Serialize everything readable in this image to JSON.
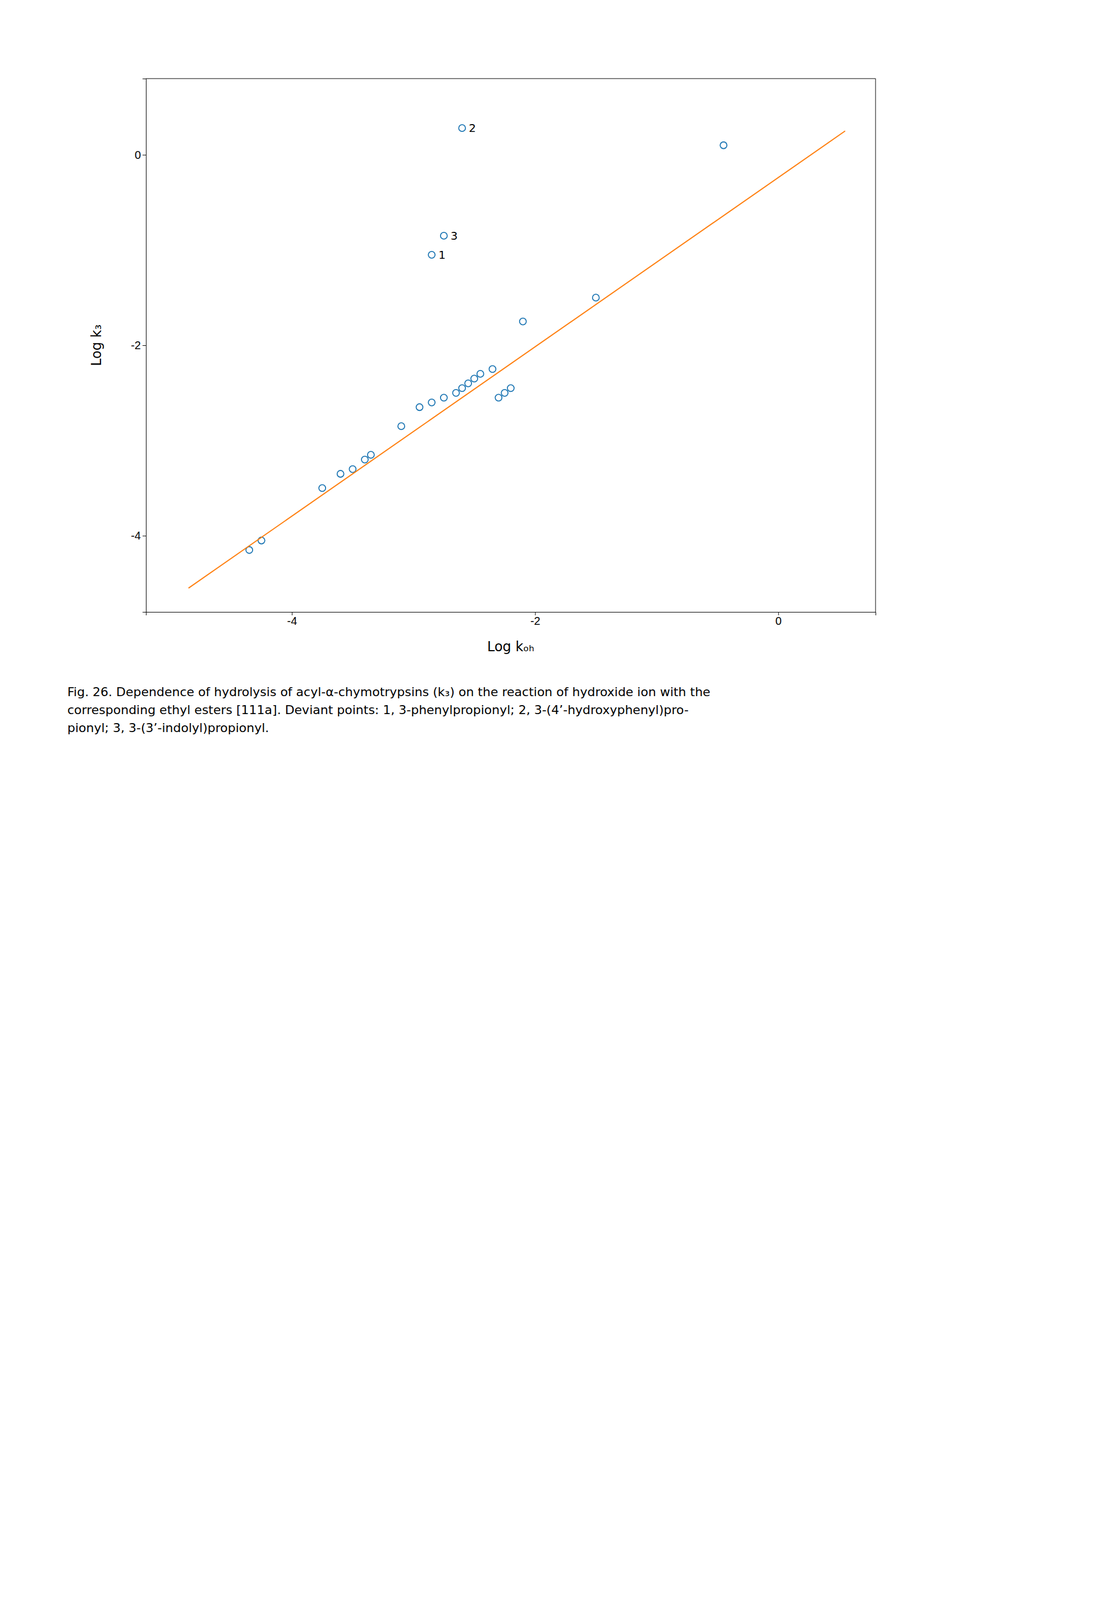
{
  "chart_data": {
    "type": "scatter",
    "title": "Fig. 26. Dependence of hydrolysis of acyl-α-chymotrypsins (k₃) on the reaction of hydroxide ion with the\ncorresponding ethyl esters [111a]. Deviant points: 1, 3-phenylpropionyl; 2, 3-(4’-hydroxyphenyl)pro-\npionyl; 3, 3-(3’-indolyl)propionyl.",
    "x_label": "Log kₒₕ",
    "y_label": "Log k₃",
    "series": [
      {
        "type": "scatter",
        "x": [
          -4.35,
          -4.25,
          -3.75,
          -3.6,
          -3.5,
          -3.4,
          -3.35,
          -3.1,
          -2.95,
          -2.85,
          -2.75,
          -2.65,
          -2.6,
          -2.55,
          -2.5,
          -2.45,
          -2.35,
          -2.3,
          -2.25,
          -2.2,
          -2.1,
          -1.5,
          -0.45,
          -2.85,
          -2.75,
          -2.6
        ],
        "values": [
          -4.15,
          -4.05,
          -3.5,
          -3.35,
          -3.3,
          -3.2,
          -3.15,
          -2.85,
          -2.65,
          -2.6,
          -2.55,
          -2.5,
          -2.45,
          -2.4,
          -2.35,
          -2.3,
          -2.25,
          -2.55,
          -2.5,
          -2.45,
          -1.75,
          -1.5,
          0.1,
          -1.05,
          -0.85,
          0.28
        ]
      },
      {
        "type": "line",
        "x": [
          -4.85,
          0.55
        ],
        "values": [
          -4.55,
          0.25
        ]
      }
    ],
    "annotations": [
      {
        "text": "2",
        "x": -2.6,
        "y": 0.28
      },
      {
        "text": "3",
        "x": -2.75,
        "y": -0.85
      },
      {
        "text": "1",
        "x": -2.85,
        "y": -1.05
      }
    ],
    "xlim": [
      -5.2,
      0.8
    ],
    "ylim": [
      -4.8,
      0.8
    ],
    "xticks": [
      -4,
      -2,
      0
    ],
    "yticks": [
      -4,
      -2,
      0
    ],
    "grid": false
  }
}
